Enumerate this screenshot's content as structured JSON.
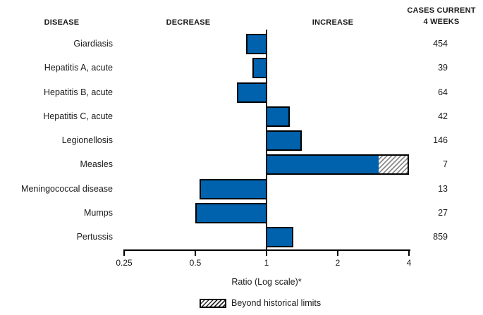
{
  "header": {
    "disease_col": "DISEASE",
    "decrease_col": "DECREASE",
    "increase_col": "INCREASE",
    "cases_col": "CASES CURRENT\n4 WEEKS"
  },
  "chart_data": {
    "type": "bar",
    "orientation": "horizontal",
    "scale": "log2",
    "title": "",
    "xlabel": "Ratio (Log scale)*",
    "axis": {
      "ticks": [
        0.25,
        0.5,
        1,
        2,
        4
      ],
      "tick_labels": [
        "0.25",
        "0.5",
        "1",
        "2",
        "4"
      ],
      "baseline": 1,
      "xlim": [
        0.25,
        4
      ],
      "grid": false
    },
    "legend": {
      "swatch": "hatched",
      "label": "Beyond historical limits",
      "position": "bottom"
    },
    "rows": [
      {
        "disease": "Giardiasis",
        "ratio": 0.82,
        "cases": "454",
        "beyond_historical_limit": false
      },
      {
        "disease": "Hepatitis A, acute",
        "ratio": 0.87,
        "cases": "39",
        "beyond_historical_limit": false
      },
      {
        "disease": "Hepatitis B, acute",
        "ratio": 0.75,
        "cases": "64",
        "beyond_historical_limit": false
      },
      {
        "disease": "Hepatitis C, acute",
        "ratio": 1.25,
        "cases": "42",
        "beyond_historical_limit": false
      },
      {
        "disease": "Legionellosis",
        "ratio": 1.41,
        "cases": "146",
        "beyond_historical_limit": false
      },
      {
        "disease": "Measles",
        "ratio": 4.0,
        "historical_limit": 3.0,
        "cases": "7",
        "beyond_historical_limit": true
      },
      {
        "disease": "Meningococcal disease",
        "ratio": 0.52,
        "cases": "13",
        "beyond_historical_limit": false
      },
      {
        "disease": "Mumps",
        "ratio": 0.5,
        "cases": "27",
        "beyond_historical_limit": false
      },
      {
        "disease": "Pertussis",
        "ratio": 1.3,
        "cases": "859",
        "beyond_historical_limit": false
      }
    ]
  },
  "colors": {
    "bar_fill": "#0061AC",
    "bar_border": "#000000",
    "hatch_line": "#8a8a8a",
    "axis": "#000000",
    "text": "#1a1a1a",
    "background": "#ffffff"
  }
}
